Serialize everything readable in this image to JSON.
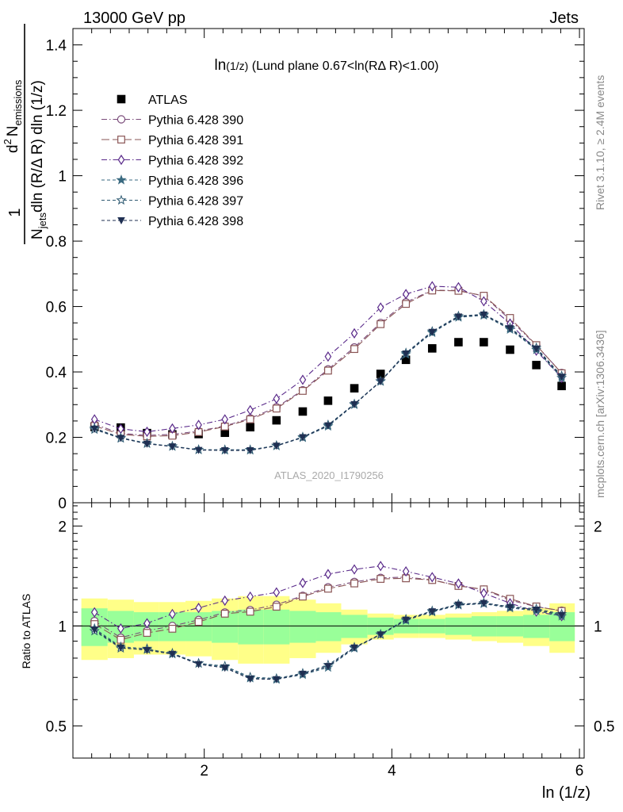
{
  "header": {
    "left": "13000 GeV pp",
    "right": "Jets"
  },
  "side_labels": {
    "rivet": "Rivet 3.1.10, ≥ 2.4M events",
    "mcplots": "mcplots.cern.ch [arXiv:1306.3436]"
  },
  "watermark": "ATLAS_2020_I1790256",
  "chart_data": [
    {
      "panel": "main",
      "type": "scatter",
      "title_prefix": "ln",
      "title_small": "(1/z)",
      "title_rest": "(Lund plane 0.67<ln(RΔ R)<1.00)",
      "ylabel": {
        "frac_num": "1",
        "frac_den_base": "N",
        "frac_den_sub": "jets",
        "frac_den_rest": "dln (R/Δ R) dln (1/z)",
        "deriv_sup": "2",
        "deriv_base": "d",
        "deriv_N": "N",
        "deriv_sub": "emissions"
      },
      "xlim": [
        0.6,
        6.05
      ],
      "ylim": [
        0,
        1.45
      ],
      "yticks": [
        0,
        0.2,
        0.4,
        0.6,
        0.8,
        1,
        1.2,
        1.4
      ],
      "ytick_labels": [
        "0",
        "0.2",
        "0.4",
        "0.6",
        "0.8",
        "1",
        "1.2",
        "1.4"
      ],
      "x": [
        0.83,
        1.11,
        1.39,
        1.66,
        1.94,
        2.22,
        2.49,
        2.77,
        3.05,
        3.32,
        3.6,
        3.88,
        4.15,
        4.43,
        4.71,
        4.98,
        5.26,
        5.54,
        5.81
      ],
      "legend_position": "top-left",
      "series": [
        {
          "name": "ATLAS",
          "color": "#000000",
          "marker": "square-filled",
          "dash": "none",
          "values": [
            0.232,
            0.23,
            0.213,
            0.209,
            0.21,
            0.214,
            0.231,
            0.252,
            0.279,
            0.312,
            0.35,
            0.394,
            0.437,
            0.472,
            0.491,
            0.491,
            0.468,
            0.421,
            0.357
          ]
        },
        {
          "name": "Pythia 6.428 390",
          "color": "#7a4b7a",
          "marker": "circle-open",
          "dash": "7,3,1.5,3",
          "values": [
            0.24,
            0.212,
            0.206,
            0.209,
            0.219,
            0.235,
            0.258,
            0.292,
            0.344,
            0.408,
            0.475,
            0.55,
            0.613,
            0.65,
            0.649,
            0.632,
            0.56,
            0.481,
            0.397
          ]
        },
        {
          "name": "Pythia 6.428 391",
          "color": "#8a5555",
          "marker": "square-open",
          "dash": "10,4",
          "values": [
            0.235,
            0.209,
            0.203,
            0.205,
            0.216,
            0.233,
            0.255,
            0.288,
            0.342,
            0.404,
            0.47,
            0.546,
            0.608,
            0.649,
            0.648,
            0.633,
            0.565,
            0.482,
            0.396
          ]
        },
        {
          "name": "Pythia 6.428 392",
          "color": "#5a2a8a",
          "marker": "diamond-open",
          "dash": "7,3,1.5,3",
          "values": [
            0.255,
            0.226,
            0.217,
            0.227,
            0.238,
            0.255,
            0.283,
            0.318,
            0.376,
            0.447,
            0.518,
            0.597,
            0.638,
            0.662,
            0.659,
            0.616,
            0.548,
            0.465,
            0.382
          ]
        },
        {
          "name": "Pythia 6.428 396",
          "color": "#3a6a80",
          "marker": "star-filled",
          "dash": "4,3",
          "values": [
            0.228,
            0.199,
            0.182,
            0.172,
            0.162,
            0.161,
            0.161,
            0.174,
            0.199,
            0.234,
            0.3,
            0.371,
            0.454,
            0.52,
            0.567,
            0.573,
            0.53,
            0.468,
            0.382
          ]
        },
        {
          "name": "Pythia 6.428 397",
          "color": "#2f5a72",
          "marker": "star-open",
          "dash": "4,3",
          "values": [
            0.224,
            0.197,
            0.181,
            0.173,
            0.162,
            0.162,
            0.162,
            0.175,
            0.201,
            0.238,
            0.302,
            0.372,
            0.458,
            0.524,
            0.571,
            0.576,
            0.535,
            0.474,
            0.388
          ]
        },
        {
          "name": "Pythia 6.428 398",
          "color": "#1f2f52",
          "marker": "triangle-down-filled",
          "dash": "4,3",
          "values": [
            0.226,
            0.198,
            0.18,
            0.172,
            0.161,
            0.16,
            0.16,
            0.174,
            0.2,
            0.236,
            0.301,
            0.371,
            0.456,
            0.522,
            0.569,
            0.575,
            0.533,
            0.471,
            0.385
          ]
        }
      ]
    },
    {
      "panel": "ratio",
      "type": "line",
      "ylabel": "Ratio to ATLAS",
      "xlabel": "ln (1/z)",
      "xlim": [
        0.6,
        6.05
      ],
      "ylim": [
        0.4,
        2.35
      ],
      "ylog": true,
      "xticks": [
        2,
        4,
        6
      ],
      "xtick_labels": [
        "2",
        "4",
        "6"
      ],
      "yticks": [
        0.5,
        1,
        2
      ],
      "ytick_labels": [
        "0.5",
        "1",
        "2"
      ],
      "bin_edges": [
        0.69,
        0.97,
        1.25,
        1.52,
        1.8,
        2.08,
        2.36,
        2.63,
        2.91,
        3.19,
        3.46,
        3.74,
        4.02,
        4.29,
        4.57,
        4.85,
        5.12,
        5.4,
        5.68,
        5.95
      ],
      "band_inner_color": "#99ff99",
      "band_outer_color": "#ffff88",
      "band_inner": [
        0.13,
        0.11,
        0.1,
        0.1,
        0.1,
        0.11,
        0.12,
        0.12,
        0.11,
        0.1,
        0.08,
        0.06,
        0.05,
        0.05,
        0.06,
        0.07,
        0.07,
        0.08,
        0.1
      ],
      "band_outer": [
        0.21,
        0.2,
        0.18,
        0.18,
        0.19,
        0.21,
        0.23,
        0.23,
        0.2,
        0.17,
        0.12,
        0.09,
        0.08,
        0.08,
        0.09,
        0.1,
        0.11,
        0.13,
        0.17
      ]
    }
  ]
}
